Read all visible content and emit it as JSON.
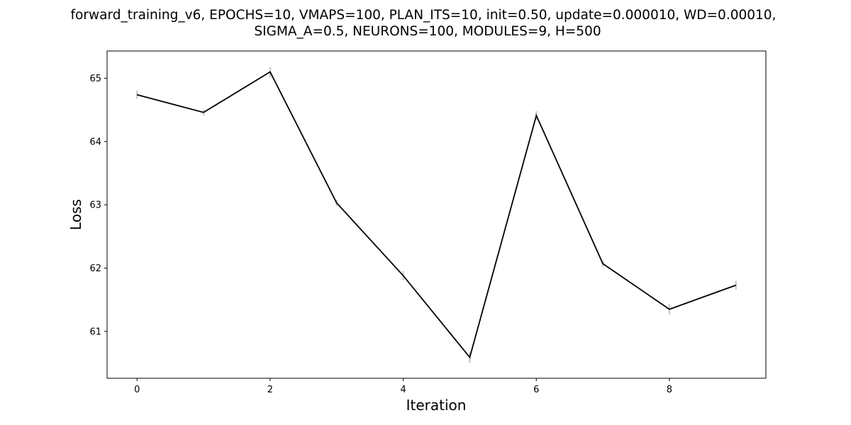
{
  "chart_data": {
    "type": "line",
    "title": [
      "forward_training_v6, EPOCHS=10, VMAPS=100, PLAN_ITS=10, init=0.50, update=0.000010, WD=0.00010,",
      "SIGMA_A=0.5, NEURONS=100, MODULES=9, H=500"
    ],
    "xlabel": "Iteration",
    "ylabel": "Loss",
    "xlim": [
      -0.45,
      9.45
    ],
    "ylim": [
      60.26,
      65.43
    ],
    "xticks": [
      0,
      2,
      4,
      6,
      8
    ],
    "yticks": [
      61,
      62,
      63,
      64,
      65
    ],
    "grid": false,
    "legend": "none",
    "series": [
      {
        "x": [
          0,
          1,
          2,
          3,
          4,
          5,
          6,
          7,
          8,
          9
        ],
        "values": [
          64.74,
          64.46,
          65.1,
          63.03,
          61.88,
          60.59,
          64.41,
          62.07,
          61.35,
          61.73
        ],
        "error": [
          0.06,
          0.05,
          0.08,
          0.05,
          0.07,
          0.09,
          0.07,
          0.05,
          0.08,
          0.07
        ],
        "color": "#000000",
        "error_color": "#cccccc"
      }
    ]
  }
}
